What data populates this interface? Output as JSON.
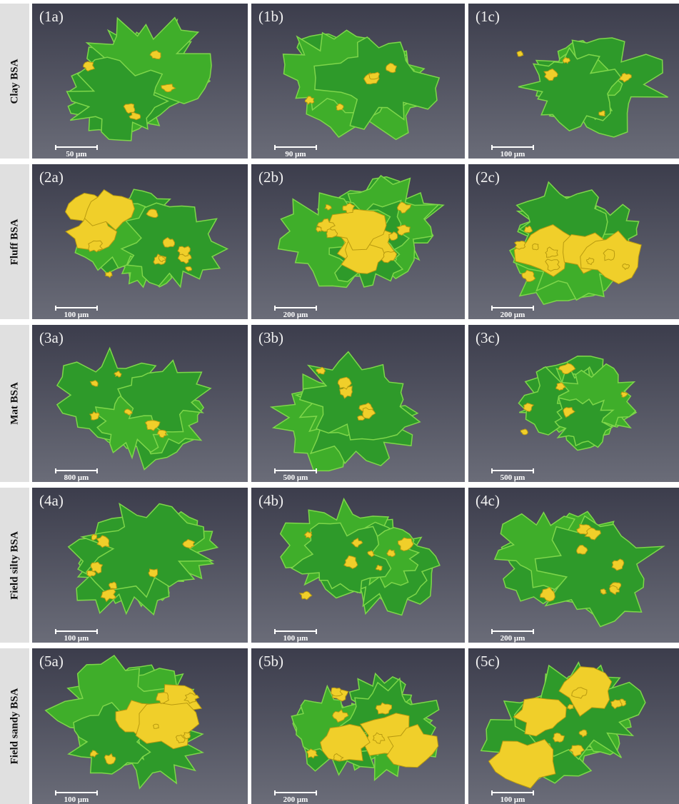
{
  "rows": [
    {
      "label": "Clay BSA",
      "panels": [
        {
          "id": "(1a)",
          "scale": "50 μm"
        },
        {
          "id": "(1b)",
          "scale": "90 μm"
        },
        {
          "id": "(1c)",
          "scale": "100 μm"
        }
      ]
    },
    {
      "label": "Fluff BSA",
      "panels": [
        {
          "id": "(2a)",
          "scale": "100 μm"
        },
        {
          "id": "(2b)",
          "scale": "200 μm"
        },
        {
          "id": "(2c)",
          "scale": "200 μm"
        }
      ]
    },
    {
      "label": "Mat BSA",
      "panels": [
        {
          "id": "(3a)",
          "scale": "800 μm"
        },
        {
          "id": "(3b)",
          "scale": "500 μm"
        },
        {
          "id": "(3c)",
          "scale": "500 μm"
        }
      ]
    },
    {
      "label": "Field silty BSA",
      "panels": [
        {
          "id": "(4a)",
          "scale": "100 μm"
        },
        {
          "id": "(4b)",
          "scale": "100 μm"
        },
        {
          "id": "(4c)",
          "scale": "200 μm"
        }
      ]
    },
    {
      "label": "Field sandy BSA",
      "panels": [
        {
          "id": "(5a)",
          "scale": "100 μm"
        },
        {
          "id": "(5b)",
          "scale": "200 μm"
        },
        {
          "id": "(5c)",
          "scale": "100 μm"
        }
      ]
    }
  ]
}
